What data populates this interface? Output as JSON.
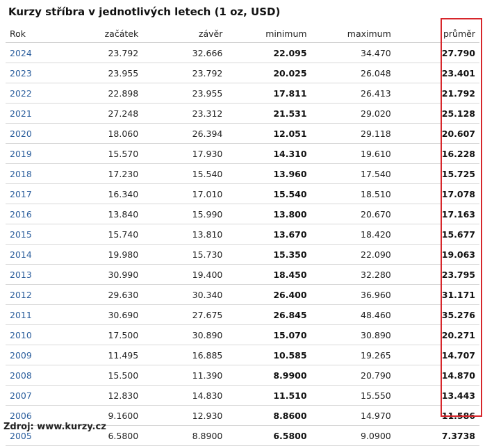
{
  "title": "Kurzy stříbra v jednotlivých letech (1 oz, USD)",
  "columns": [
    "Rok",
    "začátek",
    "závěr",
    "minimum",
    "maximum",
    "průměr"
  ],
  "rows": [
    [
      "2024",
      "23.792",
      "32.666",
      "22.095",
      "34.470",
      "27.790"
    ],
    [
      "2023",
      "23.955",
      "23.792",
      "20.025",
      "26.048",
      "23.401"
    ],
    [
      "2022",
      "22.898",
      "23.955",
      "17.811",
      "26.413",
      "21.792"
    ],
    [
      "2021",
      "27.248",
      "23.312",
      "21.531",
      "29.020",
      "25.128"
    ],
    [
      "2020",
      "18.060",
      "26.394",
      "12.051",
      "29.118",
      "20.607"
    ],
    [
      "2019",
      "15.570",
      "17.930",
      "14.310",
      "19.610",
      "16.228"
    ],
    [
      "2018",
      "17.230",
      "15.540",
      "13.960",
      "17.540",
      "15.725"
    ],
    [
      "2017",
      "16.340",
      "17.010",
      "15.540",
      "18.510",
      "17.078"
    ],
    [
      "2016",
      "13.840",
      "15.990",
      "13.800",
      "20.670",
      "17.163"
    ],
    [
      "2015",
      "15.740",
      "13.810",
      "13.670",
      "18.420",
      "15.677"
    ],
    [
      "2014",
      "19.980",
      "15.730",
      "15.350",
      "22.090",
      "19.063"
    ],
    [
      "2013",
      "30.990",
      "19.400",
      "18.450",
      "32.280",
      "23.795"
    ],
    [
      "2012",
      "29.630",
      "30.340",
      "26.400",
      "36.960",
      "31.171"
    ],
    [
      "2011",
      "30.690",
      "27.675",
      "26.845",
      "48.460",
      "35.276"
    ],
    [
      "2010",
      "17.500",
      "30.890",
      "15.070",
      "30.890",
      "20.271"
    ],
    [
      "2009",
      "11.495",
      "16.885",
      "10.585",
      "19.265",
      "14.707"
    ],
    [
      "2008",
      "15.500",
      "11.390",
      "8.9900",
      "20.790",
      "14.870"
    ],
    [
      "2007",
      "12.830",
      "14.830",
      "11.510",
      "15.550",
      "13.443"
    ],
    [
      "2006",
      "9.1600",
      "12.930",
      "8.8600",
      "14.970",
      "11.586"
    ],
    [
      "2005",
      "6.5800",
      "8.8900",
      "6.5800",
      "9.0900",
      "7.3738"
    ]
  ],
  "source": "Zdroj: www.kurzy.cz",
  "colors": {
    "year_link": "#2a5d9c",
    "highlight_border": "#d7262b"
  }
}
